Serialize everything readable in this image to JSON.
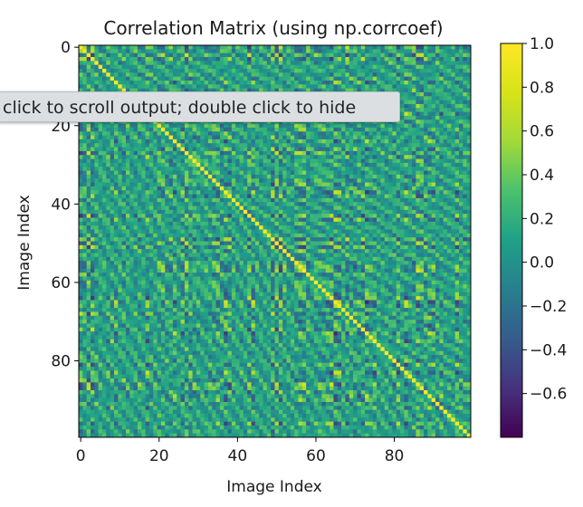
{
  "tooltip": {
    "text": "click to scroll output; double click to hide"
  },
  "chart_data": {
    "type": "heatmap",
    "title": "Correlation Matrix (using np.corrcoef)",
    "xlabel": "Image Index",
    "ylabel": "Image Index",
    "size": 100,
    "x_ticks": [
      0,
      20,
      40,
      60,
      80
    ],
    "y_ticks": [
      0,
      20,
      40,
      60,
      80
    ],
    "colormap": "viridis",
    "colorbar": {
      "vmin": -0.8,
      "vmax": 1.0,
      "ticks": [
        1.0,
        0.8,
        0.6,
        0.4,
        0.2,
        0.0,
        -0.2,
        -0.4,
        -0.6
      ],
      "tick_labels": [
        "1.0",
        "0.8",
        "0.6",
        "0.4",
        "0.2",
        "0.0",
        "−0.2",
        "−0.4",
        "−0.6"
      ]
    },
    "diagonal_value": 1.0,
    "grid": false
  }
}
